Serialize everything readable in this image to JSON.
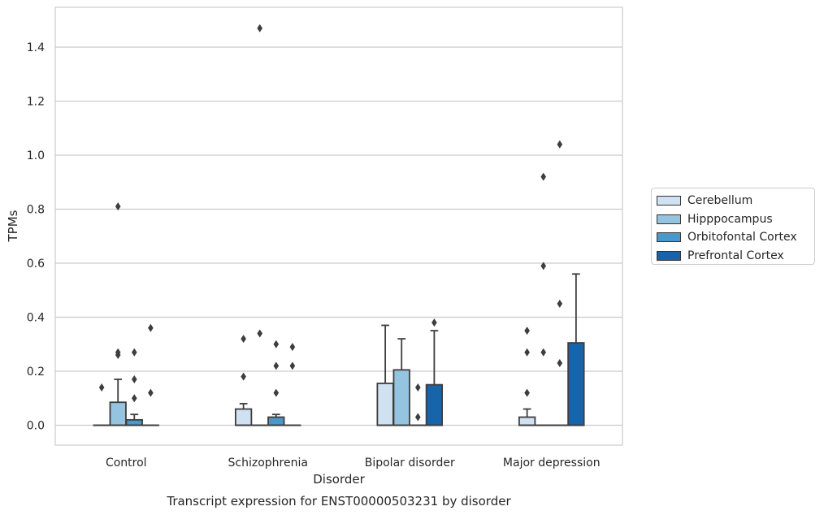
{
  "chart_data": {
    "type": "box",
    "caption": "Transcript expression for ENST00000503231 by disorder",
    "xlabel": "Disorder",
    "ylabel": "TPMs",
    "ylim": [
      -0.07,
      1.55
    ],
    "yticks": [
      0.0,
      0.2,
      0.4,
      0.6,
      0.8,
      1.0,
      1.2,
      1.4
    ],
    "ytick_labels": [
      "0.0",
      "0.2",
      "0.4",
      "0.6",
      "0.8",
      "1.0",
      "1.2",
      "1.4"
    ],
    "grid": "horizontal",
    "legend_position": "right",
    "categories": [
      "Control",
      "Schizophrenia",
      "Bipolar disorder",
      "Major depression"
    ],
    "series": [
      {
        "name": "Cerebellum",
        "color": "#d0e1f2",
        "boxes": [
          {
            "q1": 0.0,
            "median": 0.0,
            "q3": 0.0,
            "whislo": 0.0,
            "whishi": 0.0,
            "fliers": [
              0.14
            ]
          },
          {
            "q1": 0.0,
            "median": 0.0,
            "q3": 0.06,
            "whislo": 0.0,
            "whishi": 0.08,
            "fliers": [
              0.18,
              0.32
            ]
          },
          {
            "q1": 0.0,
            "median": 0.0,
            "q3": 0.155,
            "whislo": 0.0,
            "whishi": 0.37,
            "fliers": []
          },
          {
            "q1": 0.0,
            "median": 0.0,
            "q3": 0.03,
            "whislo": 0.0,
            "whishi": 0.06,
            "fliers": [
              0.12,
              0.27,
              0.35
            ]
          }
        ]
      },
      {
        "name": "Hipppocampus",
        "color": "#94c4df",
        "boxes": [
          {
            "q1": 0.0,
            "median": 0.0,
            "q3": 0.085,
            "whislo": 0.0,
            "whishi": 0.17,
            "fliers": [
              0.26,
              0.27,
              0.81
            ]
          },
          {
            "q1": 0.0,
            "median": 0.0,
            "q3": 0.0,
            "whislo": 0.0,
            "whishi": 0.0,
            "fliers": [
              0.34,
              1.47
            ]
          },
          {
            "q1": 0.0,
            "median": 0.0,
            "q3": 0.205,
            "whislo": 0.0,
            "whishi": 0.32,
            "fliers": []
          },
          {
            "q1": 0.0,
            "median": 0.0,
            "q3": 0.0,
            "whislo": 0.0,
            "whishi": 0.0,
            "fliers": [
              0.27,
              0.59,
              0.92
            ]
          }
        ]
      },
      {
        "name": "Orbitofontal Cortex",
        "color": "#4a98c9",
        "boxes": [
          {
            "q1": 0.0,
            "median": 0.0,
            "q3": 0.02,
            "whislo": 0.0,
            "whishi": 0.04,
            "fliers": [
              0.1,
              0.17,
              0.27
            ]
          },
          {
            "q1": 0.0,
            "median": 0.0,
            "q3": 0.03,
            "whislo": 0.0,
            "whishi": 0.04,
            "fliers": [
              0.12,
              0.22,
              0.3
            ]
          },
          {
            "q1": 0.0,
            "median": 0.0,
            "q3": 0.0,
            "whislo": 0.0,
            "whishi": 0.0,
            "fliers": [
              0.03,
              0.14
            ]
          },
          {
            "q1": 0.0,
            "median": 0.0,
            "q3": 0.0,
            "whislo": 0.0,
            "whishi": 0.0,
            "fliers": [
              0.23,
              0.45,
              1.04
            ]
          }
        ]
      },
      {
        "name": "Prefrontal Cortex",
        "color": "#1764ab",
        "boxes": [
          {
            "q1": 0.0,
            "median": 0.0,
            "q3": 0.0,
            "whislo": 0.0,
            "whishi": 0.0,
            "fliers": [
              0.12,
              0.36
            ]
          },
          {
            "q1": 0.0,
            "median": 0.0,
            "q3": 0.0,
            "whislo": 0.0,
            "whishi": 0.0,
            "fliers": [
              0.22,
              0.29
            ]
          },
          {
            "q1": 0.0,
            "median": 0.0,
            "q3": 0.15,
            "whislo": 0.0,
            "whishi": 0.35,
            "fliers": [
              0.38
            ]
          },
          {
            "q1": 0.0,
            "median": 0.0,
            "q3": 0.305,
            "whislo": 0.0,
            "whishi": 0.56,
            "fliers": []
          }
        ]
      }
    ]
  }
}
